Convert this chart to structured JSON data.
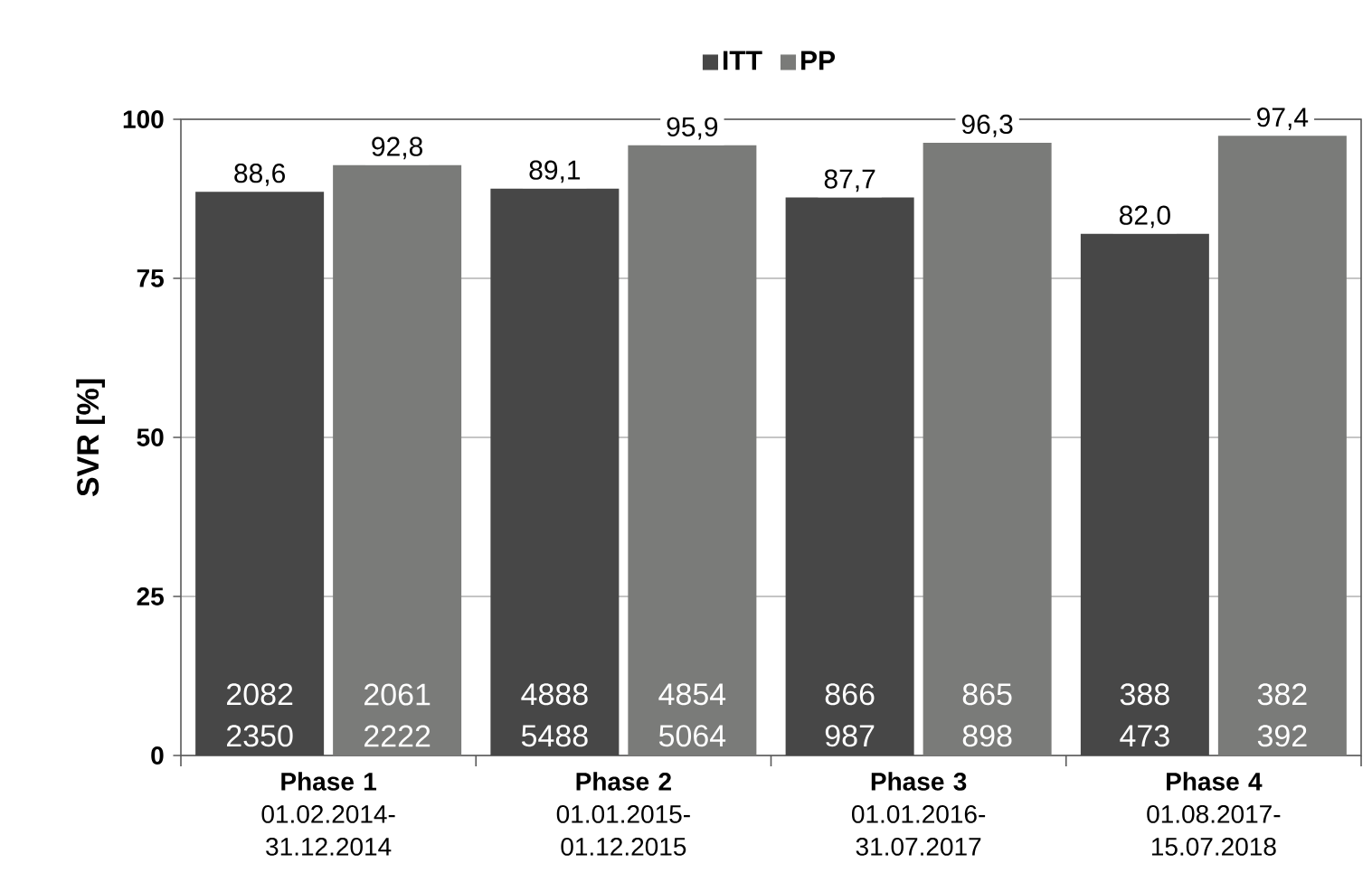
{
  "chart_data": {
    "type": "bar",
    "ylabel": "SVR  [%]",
    "categories": [
      "**Phase 1** 01.02.2014-31.12.2014",
      "**Phase 2** 01.01.2015-01.12.2015",
      "**Phase 3** 01.01.2016-31.07.2017",
      "**Phase 4** 01.08.2017-15.07.2018"
    ],
    "series": [
      {
        "name": "ITT",
        "color": "#474747",
        "values": [
          88.6,
          89.1,
          87.7,
          82.0
        ],
        "value_labels": [
          "88,6",
          "89,1",
          "87,7",
          "82,0"
        ]
      },
      {
        "name": "PP",
        "color": "#7a7b79",
        "values": [
          92.8,
          95.9,
          96.3,
          97.4
        ],
        "value_labels": [
          "92,8",
          "95,9",
          "96,3",
          "97,4"
        ]
      }
    ],
    "annotations": [
      "2082 2350",
      "2061 2222",
      "4888 5488",
      "4854 5064",
      "866 987",
      "865 898",
      "388 473",
      "382 392"
    ],
    "ylim": [
      0,
      100
    ],
    "yticks": [
      0,
      25,
      50,
      75,
      100
    ],
    "grid": "y",
    "legend": "top"
  }
}
